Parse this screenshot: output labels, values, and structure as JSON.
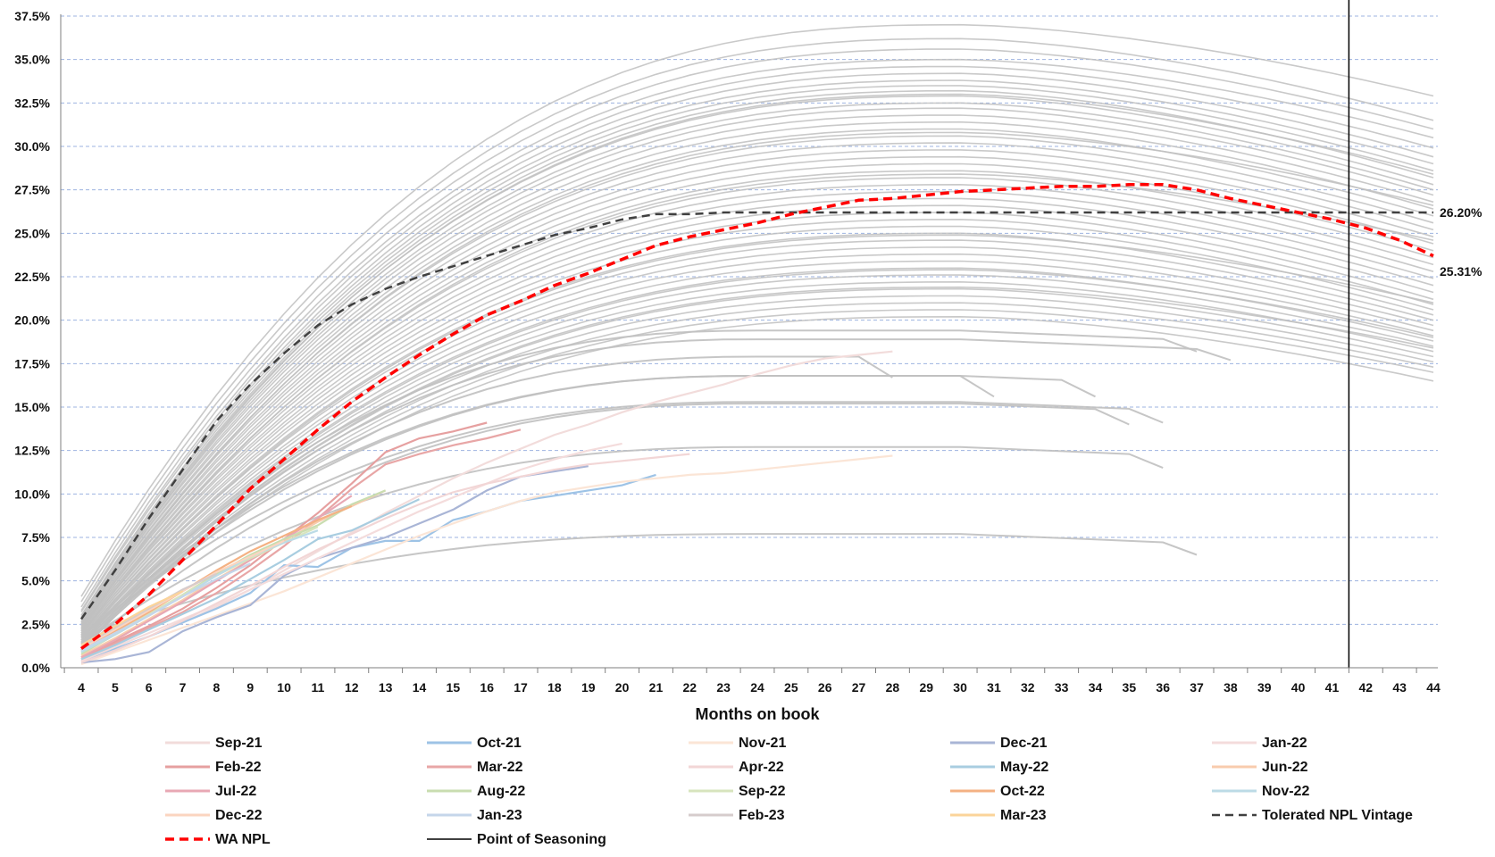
{
  "chart_data": {
    "type": "line",
    "title": "",
    "xlabel": "Months on book",
    "ylabel": "",
    "x": [
      4,
      5,
      6,
      7,
      8,
      9,
      10,
      11,
      12,
      13,
      14,
      15,
      16,
      17,
      18,
      19,
      20,
      21,
      22,
      23,
      24,
      25,
      26,
      27,
      28,
      29,
      30,
      31,
      32,
      33,
      34,
      35,
      36,
      37,
      38,
      39,
      40,
      41,
      42,
      43,
      44
    ],
    "x_tick_labels": [
      "4",
      "5",
      "6",
      "7",
      "8",
      "9",
      "10",
      "11",
      "12",
      "13",
      "14",
      "15",
      "16",
      "17",
      "18",
      "19",
      "20",
      "21",
      "22",
      "23",
      "24",
      "25",
      "26",
      "27",
      "28",
      "29",
      "30",
      "31",
      "32",
      "33",
      "34",
      "35",
      "36",
      "37",
      "38",
      "39",
      "40",
      "41",
      "42",
      "43",
      "44"
    ],
    "ylim": [
      0,
      37.5
    ],
    "y_ticks": [
      0,
      2.5,
      5,
      7.5,
      10,
      12.5,
      15,
      17.5,
      20,
      22.5,
      25,
      27.5,
      30,
      32.5,
      35,
      37.5
    ],
    "y_tick_labels": [
      "0.0%",
      "2.5%",
      "5.0%",
      "7.5%",
      "10.0%",
      "12.5%",
      "15.0%",
      "17.5%",
      "20.0%",
      "22.5%",
      "25.0%",
      "27.5%",
      "30.0%",
      "32.5%",
      "35.0%",
      "37.5%"
    ],
    "grid": "horizontal dashed",
    "legend_position": "bottom",
    "background_vintages": {
      "color": "#c0c0c0",
      "note_count": 70,
      "start_x": 4,
      "profiles": [
        {
          "start": 4.1,
          "peak": 37.0,
          "end": 32.9
        },
        {
          "start": 3.8,
          "peak": 36.2,
          "end": 31.5
        },
        {
          "start": 3.5,
          "peak": 35.6,
          "end": 31.0
        },
        {
          "start": 3.3,
          "peak": 35.0,
          "end": 30.5
        },
        {
          "start": 3.2,
          "peak": 34.6,
          "end": 29.9
        },
        {
          "start": 3.0,
          "peak": 34.2,
          "end": 29.4
        },
        {
          "start": 3.0,
          "peak": 33.8,
          "end": 29.0
        },
        {
          "start": 2.9,
          "peak": 33.5,
          "end": 28.6
        },
        {
          "start": 2.8,
          "peak": 33.2,
          "end": 28.2
        },
        {
          "start": 2.8,
          "peak": 32.9,
          "end": 27.8
        },
        {
          "start": 2.7,
          "peak": 32.5,
          "end": 27.5
        },
        {
          "start": 2.6,
          "peak": 32.2,
          "end": 27.2
        },
        {
          "start": 2.6,
          "peak": 31.8,
          "end": 26.8
        },
        {
          "start": 2.5,
          "peak": 31.4,
          "end": 26.4
        },
        {
          "start": 2.5,
          "peak": 31.0,
          "end": 26.0
        },
        {
          "start": 2.4,
          "peak": 30.6,
          "end": 25.6
        },
        {
          "start": 2.4,
          "peak": 30.2,
          "end": 25.2
        },
        {
          "start": 2.3,
          "peak": 29.8,
          "end": 24.8
        },
        {
          "start": 2.3,
          "peak": 29.4,
          "end": 24.4
        },
        {
          "start": 2.2,
          "peak": 29.0,
          "end": 24.0
        },
        {
          "start": 2.2,
          "peak": 28.6,
          "end": 23.6
        },
        {
          "start": 2.1,
          "peak": 28.2,
          "end": 23.2
        },
        {
          "start": 2.1,
          "peak": 27.8,
          "end": 22.8
        },
        {
          "start": 2.0,
          "peak": 27.4,
          "end": 22.4
        },
        {
          "start": 2.0,
          "peak": 27.0,
          "end": 22.0
        },
        {
          "start": 1.9,
          "peak": 26.6,
          "end": 21.6
        },
        {
          "start": 1.9,
          "peak": 26.2,
          "end": 21.2
        },
        {
          "start": 1.8,
          "peak": 25.8,
          "end": 20.9
        },
        {
          "start": 1.8,
          "peak": 25.4,
          "end": 20.6
        },
        {
          "start": 1.7,
          "peak": 25.0,
          "end": 20.3
        },
        {
          "start": 1.7,
          "peak": 24.6,
          "end": 20.0
        },
        {
          "start": 1.6,
          "peak": 24.2,
          "end": 19.7
        },
        {
          "start": 1.6,
          "peak": 23.8,
          "end": 19.4
        },
        {
          "start": 1.5,
          "peak": 23.4,
          "end": 19.1
        },
        {
          "start": 1.5,
          "peak": 23.0,
          "end": 18.8
        },
        {
          "start": 1.4,
          "peak": 22.6,
          "end": 18.5
        },
        {
          "start": 1.4,
          "peak": 22.2,
          "end": 18.2
        },
        {
          "start": 1.3,
          "peak": 21.8,
          "end": 17.9
        },
        {
          "start": 1.3,
          "peak": 21.4,
          "end": 17.6
        },
        {
          "start": 1.2,
          "peak": 21.0,
          "end": 17.3
        },
        {
          "start": 1.2,
          "peak": 20.6,
          "end": 17.0
        },
        {
          "start": 1.1,
          "peak": 20.2,
          "end": 16.5
        },
        {
          "start": 2.6,
          "peak": 33.0,
          "end": 28.4
        },
        {
          "start": 2.2,
          "peak": 30.8,
          "end": 26.6
        },
        {
          "start": 1.9,
          "peak": 28.4,
          "end": 24.6
        },
        {
          "start": 1.6,
          "peak": 24.9,
          "end": 21.0
        },
        {
          "start": 1.4,
          "peak": 22.9,
          "end": 19.0
        },
        {
          "start": 1.3,
          "peak": 21.9,
          "end": 18.4
        }
      ],
      "partial": [
        {
          "last_x": 38,
          "end": 17.7
        },
        {
          "last_x": 37,
          "end": 18.2
        },
        {
          "last_x": 36,
          "end": 14.1
        },
        {
          "last_x": 35,
          "end": 14.0
        },
        {
          "last_x": 34,
          "end": 15.6
        },
        {
          "last_x": 31,
          "end": 15.6
        },
        {
          "last_x": 28,
          "end": 16.7
        },
        {
          "last_x": 36,
          "end": 11.5
        },
        {
          "last_x": 37,
          "end": 6.5
        }
      ]
    },
    "recent_vintages": [
      {
        "name": "Sep-21",
        "color": "#f2dcdb",
        "values": [
          0.3,
          1.0,
          1.8,
          2.6,
          3.5,
          4.5,
          5.6,
          6.7,
          7.8,
          8.9,
          9.9,
          10.9,
          11.8,
          12.6,
          13.4,
          14.0,
          14.7,
          15.3,
          15.8,
          16.3,
          16.9,
          17.4,
          17.8,
          18.0,
          18.2
        ]
      },
      {
        "name": "Oct-21",
        "color": "#9dc3e6",
        "values": [
          0.4,
          1.1,
          1.8,
          2.6,
          3.4,
          4.3,
          5.9,
          5.8,
          6.9,
          7.3,
          7.3,
          8.5,
          9.0,
          9.6,
          9.9,
          10.2,
          10.5,
          11.1
        ]
      },
      {
        "name": "Nov-21",
        "color": "#fbe5d6",
        "values": [
          0.2,
          0.9,
          1.6,
          2.3,
          3.0,
          3.7,
          4.4,
          5.2,
          6.0,
          6.8,
          7.6,
          8.3,
          9.0,
          9.6,
          10.1,
          10.4,
          10.7,
          10.9,
          11.1,
          11.2,
          11.4,
          11.6,
          11.8,
          12.0,
          12.2
        ]
      },
      {
        "name": "Dec-21",
        "color": "#a9b5d6",
        "values": [
          0.3,
          0.5,
          0.9,
          2.1,
          2.9,
          3.6,
          5.3,
          6.3,
          6.9,
          7.5,
          8.3,
          9.1,
          10.2,
          11.0,
          11.3,
          11.6
        ]
      },
      {
        "name": "Jan-22",
        "color": "#f4dcdc",
        "values": [
          0.4,
          1.2,
          2.0,
          2.8,
          3.6,
          4.5,
          5.4,
          6.3,
          7.2,
          8.1,
          9.0,
          9.8,
          10.6,
          11.4,
          12.0,
          12.5,
          12.9
        ]
      },
      {
        "name": "Feb-22",
        "color": "#e6a0a0",
        "values": [
          0.6,
          1.5,
          2.4,
          3.4,
          4.6,
          5.9,
          7.4,
          8.9,
          10.6,
          12.4,
          13.2,
          13.6,
          14.1
        ]
      },
      {
        "name": "Mar-22",
        "color": "#e8a6a6",
        "values": [
          0.5,
          1.4,
          2.3,
          3.2,
          4.3,
          5.6,
          7.0,
          8.6,
          10.3,
          11.7,
          12.3,
          12.8,
          13.2,
          13.7
        ]
      },
      {
        "name": "Apr-22",
        "color": "#f2d6d6",
        "values": [
          0.3,
          1.0,
          1.8,
          2.7,
          3.7,
          4.7,
          5.8,
          6.8,
          7.7,
          8.6,
          9.4,
          10.1,
          10.6,
          11.0,
          11.4,
          11.7,
          11.9,
          12.1,
          12.3
        ]
      },
      {
        "name": "May-22",
        "color": "#a8cde0",
        "values": [
          0.5,
          1.3,
          2.2,
          3.1,
          4.0,
          5.1,
          6.2,
          7.4,
          7.9,
          8.8,
          9.7
        ]
      },
      {
        "name": "Jun-22",
        "color": "#f8cbad",
        "values": [
          0.7,
          1.7,
          2.8,
          3.9,
          5.1,
          6.2,
          7.3,
          8.4,
          9.3,
          10.2
        ]
      },
      {
        "name": "Jul-22",
        "color": "#e8a8b4",
        "values": [
          0.6,
          1.6,
          2.7,
          3.8,
          5.0,
          6.2,
          7.4,
          8.6,
          9.9
        ]
      },
      {
        "name": "Aug-22",
        "color": "#c9ddb0",
        "values": [
          0.8,
          1.9,
          3.0,
          4.2,
          5.4,
          6.5,
          7.4,
          8.2,
          9.4,
          10.2
        ]
      },
      {
        "name": "Sep-22",
        "color": "#d7e4bd",
        "values": [
          0.9,
          2.0,
          3.1,
          4.2,
          5.3,
          6.3,
          7.2,
          8.1
        ]
      },
      {
        "name": "Oct-22",
        "color": "#f4b183",
        "values": [
          1.0,
          2.1,
          3.2,
          4.4,
          5.6,
          6.7,
          7.6,
          8.5,
          9.3
        ]
      },
      {
        "name": "Nov-22",
        "color": "#bcdbe6",
        "values": [
          0.9,
          1.9,
          3.0,
          4.1,
          5.3,
          6.4,
          7.2,
          7.9
        ]
      },
      {
        "name": "Dec-22",
        "color": "#fbd5c0",
        "values": [
          1.1,
          2.2,
          3.3,
          4.4,
          5.5,
          6.4,
          7.3
        ]
      },
      {
        "name": "Jan-23",
        "color": "#c5d6ea",
        "values": [
          1.0,
          2.0,
          3.0,
          4.1,
          5.1,
          6.0
        ]
      },
      {
        "name": "Feb-23",
        "color": "#d6cccc",
        "values": [
          1.2,
          2.3,
          3.4,
          4.5,
          5.4
        ]
      },
      {
        "name": "Mar-23",
        "color": "#fbd49a",
        "values": [
          1.3,
          2.4,
          3.5,
          4.4
        ]
      }
    ],
    "tolerated_npl_vintage": {
      "name": "Tolerated NPL Vintage",
      "color": "#404040",
      "values": [
        2.8,
        5.6,
        8.6,
        11.4,
        14.2,
        16.3,
        18.1,
        19.7,
        20.9,
        21.8,
        22.5,
        23.1,
        23.7,
        24.3,
        24.9,
        25.3,
        25.8,
        26.1,
        26.1,
        26.2,
        26.2,
        26.2,
        26.2,
        26.2,
        26.2,
        26.2,
        26.2,
        26.2,
        26.2,
        26.2,
        26.2,
        26.2,
        26.2,
        26.2,
        26.2,
        26.2,
        26.2,
        26.2,
        26.2,
        26.2,
        26.2
      ]
    },
    "wa_npl": {
      "name": "WA NPL",
      "color": "#ff0000",
      "values": [
        1.1,
        2.5,
        4.2,
        6.2,
        8.2,
        10.3,
        12.0,
        13.7,
        15.3,
        16.7,
        18.0,
        19.2,
        20.3,
        21.1,
        22.0,
        22.7,
        23.5,
        24.3,
        24.8,
        25.2,
        25.6,
        26.1,
        26.5,
        26.9,
        27.0,
        27.2,
        27.4,
        27.5,
        27.6,
        27.7,
        27.7,
        27.8,
        27.8,
        27.5,
        27.0,
        26.6,
        26.2,
        25.8,
        25.3,
        24.6,
        23.7
      ]
    },
    "point_of_seasoning": {
      "name": "Point of Seasoning",
      "x": 42,
      "color": "#000000"
    },
    "annotations": [
      {
        "text": "26.20%",
        "y": 26.2
      },
      {
        "text": "25.31%",
        "y": 22.8
      }
    ]
  }
}
